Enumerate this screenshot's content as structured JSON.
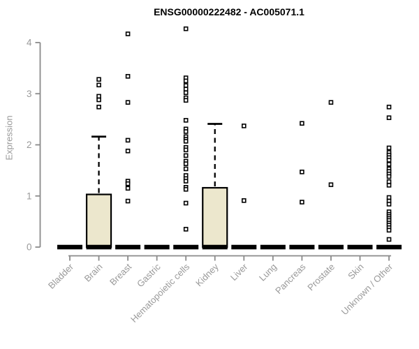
{
  "chart_data": {
    "type": "boxplot",
    "title": "ENSG00000222482 - AC005071.1",
    "ylabel": "Expression",
    "xlabel": "",
    "ylim": [
      0,
      4.3
    ],
    "yticks": [
      0,
      1,
      2,
      3,
      4
    ],
    "grid": false,
    "legend": false,
    "colors": {
      "box_fill": "#ece7cd",
      "box_border": "#000000",
      "axis": "#8a8a8a",
      "tick_text": "#999999",
      "title_text": "#000000"
    },
    "categories": [
      {
        "name": "Bladder",
        "median": 0,
        "q3": 0,
        "whisker_high": 0,
        "outliers": []
      },
      {
        "name": "Brain",
        "median": 0,
        "q3": 1.03,
        "whisker_high": 2.16,
        "outliers": [
          3.28,
          3.17,
          2.95,
          2.88,
          2.74
        ]
      },
      {
        "name": "Breast",
        "median": 0,
        "q3": 0,
        "whisker_high": 0,
        "outliers": [
          4.17,
          3.34,
          2.83,
          2.09,
          1.88,
          1.29,
          1.24,
          1.15,
          0.9
        ]
      },
      {
        "name": "Gastric",
        "median": 0,
        "q3": 0,
        "whisker_high": 0,
        "outliers": []
      },
      {
        "name": "Hematopoietic cells",
        "median": 0,
        "q3": 0,
        "whisker_high": 0,
        "outliers": [
          4.27,
          3.31,
          3.25,
          3.16,
          3.09,
          3.02,
          2.92,
          2.87,
          2.48,
          2.31,
          2.26,
          2.16,
          2.11,
          2.07,
          1.95,
          1.9,
          1.79,
          1.68,
          1.63,
          1.53,
          1.4,
          1.34,
          1.29,
          1.17,
          1.13,
          0.86,
          0.35
        ]
      },
      {
        "name": "Kidney",
        "median": 0,
        "q3": 1.16,
        "whisker_high": 2.41,
        "outliers": []
      },
      {
        "name": "Liver",
        "median": 0,
        "q3": 0,
        "whisker_high": 0,
        "outliers": [
          2.37,
          0.91
        ]
      },
      {
        "name": "Lung",
        "median": 0,
        "q3": 0,
        "whisker_high": 0,
        "outliers": []
      },
      {
        "name": "Pancreas",
        "median": 0,
        "q3": 0,
        "whisker_high": 0,
        "outliers": [
          2.42,
          1.47,
          0.88
        ]
      },
      {
        "name": "Prostate",
        "median": 0,
        "q3": 0,
        "whisker_high": 0,
        "outliers": [
          2.83,
          1.22
        ]
      },
      {
        "name": "Skin",
        "median": 0,
        "q3": 0,
        "whisker_high": 0,
        "outliers": []
      },
      {
        "name": "Unknown / Other",
        "median": 0,
        "q3": 0,
        "whisker_high": 0,
        "outliers": [
          2.74,
          2.53,
          1.94,
          1.85,
          1.8,
          1.75,
          1.7,
          1.62,
          1.53,
          1.48,
          1.43,
          1.38,
          1.28,
          1.21,
          0.97,
          0.9,
          0.84,
          0.69,
          0.64,
          0.6,
          0.56,
          0.52,
          0.47,
          0.43,
          0.38,
          0.33,
          0.15
        ]
      }
    ]
  }
}
